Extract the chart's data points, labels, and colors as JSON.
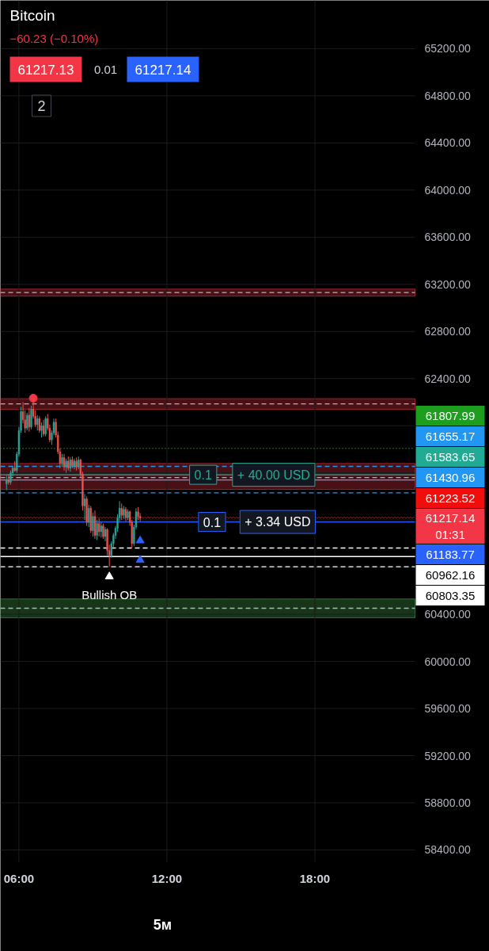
{
  "chart_data": {
    "type": "candlestick",
    "title": "Bitcoin",
    "subtitle": "−60.23 (−0.10%)",
    "annotations": [
      "61217.13",
      "0.01",
      "61217.14",
      "2",
      "5м",
      {
        "text": "0.1",
        "x": 13.47,
        "y": 61583.65
      },
      {
        "text": "+ 40.00 USD",
        "x": 16.33,
        "y": 61583.65
      },
      {
        "text": "0.1",
        "x": 13.83,
        "y": 61183.77
      },
      {
        "text": "+ 3.34 USD",
        "x": 16.49,
        "y": 61183.77
      },
      {
        "text": "Bullish OB",
        "x": 9.6667,
        "y": 60720
      }
    ],
    "x": [
      5.5,
      5.5833,
      5.6667,
      5.75,
      5.8333,
      5.9167,
      6.0,
      6.0833,
      6.1667,
      6.25,
      6.3333,
      6.4167,
      6.5,
      6.5833,
      6.6667,
      6.75,
      6.8333,
      6.9167,
      7.0,
      7.0833,
      7.1667,
      7.25,
      7.3333,
      7.4167,
      7.5,
      7.5833,
      7.6667,
      7.75,
      7.8333,
      7.9167,
      8.0,
      8.0833,
      8.1667,
      8.25,
      8.3333,
      8.4167,
      8.5,
      8.5833,
      8.6667,
      8.75,
      8.8333,
      8.9167,
      9.0,
      9.0833,
      9.1667,
      9.25,
      9.3333,
      9.4167,
      9.5,
      9.5833,
      9.6667,
      9.75,
      9.8333,
      9.9167,
      10.0,
      10.0833,
      10.1667,
      10.25,
      10.3333,
      10.4167,
      10.5,
      10.5833,
      10.6667,
      10.75,
      10.8333,
      10.9167
    ],
    "ohlc": [
      [
        61507,
        61575,
        61453,
        61541
      ],
      [
        61541,
        61590,
        61500,
        61520
      ],
      [
        61520,
        61620,
        61500,
        61600
      ],
      [
        61600,
        61660,
        61570,
        61640
      ],
      [
        61640,
        61700,
        61610,
        61620
      ],
      [
        61620,
        61780,
        61600,
        61760
      ],
      [
        61760,
        61990,
        61740,
        61960
      ],
      [
        61960,
        62160,
        61940,
        62120
      ],
      [
        62120,
        62200,
        62020,
        62050
      ],
      [
        62050,
        62130,
        61940,
        61980
      ],
      [
        61980,
        62110,
        61960,
        62090
      ],
      [
        62090,
        62150,
        61950,
        61990
      ],
      [
        61990,
        62170,
        61970,
        62140
      ],
      [
        62140,
        62234,
        62060,
        62080
      ],
      [
        62080,
        62130,
        61990,
        62010
      ],
      [
        62010,
        62090,
        61960,
        62060
      ],
      [
        62060,
        62080,
        61940,
        61960
      ],
      [
        61960,
        62030,
        61900,
        62000
      ],
      [
        62000,
        62050,
        61910,
        61930
      ],
      [
        61930,
        62080,
        61910,
        62060
      ],
      [
        62060,
        62100,
        61960,
        61980
      ],
      [
        61980,
        62010,
        61860,
        61880
      ],
      [
        61880,
        61960,
        61840,
        61940
      ],
      [
        61940,
        62060,
        61920,
        62030
      ],
      [
        62030,
        62060,
        61900,
        61920
      ],
      [
        61920,
        61950,
        61760,
        61780
      ],
      [
        61780,
        61810,
        61640,
        61680
      ],
      [
        61680,
        61760,
        61650,
        61730
      ],
      [
        61730,
        61760,
        61620,
        61650
      ],
      [
        61650,
        61720,
        61600,
        61700
      ],
      [
        61700,
        61740,
        61620,
        61640
      ],
      [
        61640,
        61730,
        61610,
        61710
      ],
      [
        61710,
        61740,
        61640,
        61660
      ],
      [
        61660,
        61720,
        61630,
        61700
      ],
      [
        61700,
        61730,
        61620,
        61650
      ],
      [
        61650,
        61740,
        61630,
        61710
      ],
      [
        61710,
        61720,
        61560,
        61590
      ],
      [
        61590,
        61610,
        61280,
        61320
      ],
      [
        61320,
        61420,
        61200,
        61380
      ],
      [
        61380,
        61400,
        61150,
        61180
      ],
      [
        61180,
        61330,
        61140,
        61300
      ],
      [
        61300,
        61320,
        61090,
        61110
      ],
      [
        61110,
        61260,
        61060,
        61230
      ],
      [
        61230,
        61280,
        61040,
        61070
      ],
      [
        61070,
        61200,
        61030,
        61170
      ],
      [
        61170,
        61210,
        61060,
        61100
      ],
      [
        61100,
        61180,
        61050,
        61150
      ],
      [
        61150,
        61170,
        61040,
        61060
      ],
      [
        61060,
        61140,
        61020,
        61120
      ],
      [
        61120,
        61130,
        60900,
        60940
      ],
      [
        60940,
        60990,
        60803.35,
        60900
      ],
      [
        60900,
        61020,
        60880,
        61000
      ],
      [
        61000,
        61090,
        60970,
        61070
      ],
      [
        61070,
        61150,
        61040,
        61130
      ],
      [
        61130,
        61250,
        61100,
        61220
      ],
      [
        61220,
        61360,
        61190,
        61300
      ],
      [
        61300,
        61340,
        61200,
        61240
      ],
      [
        61240,
        61320,
        61210,
        61290
      ],
      [
        61290,
        61310,
        61190,
        61220
      ],
      [
        61220,
        61290,
        61200,
        61270
      ],
      [
        61270,
        61280,
        61150,
        61180
      ],
      [
        61180,
        61200,
        60960,
        61000
      ],
      [
        61000,
        61160,
        60980,
        61140
      ],
      [
        61140,
        61300,
        61120,
        61270
      ],
      [
        61270,
        61310,
        61200,
        61230
      ],
      [
        61230,
        61260,
        61190,
        61217.14
      ]
    ],
    "colors": [
      "#26a69a",
      "#ef5350",
      "#26a69a",
      "#26a69a",
      "#ef5350",
      "#26a69a",
      "#26a69a",
      "#26a69a",
      "#ef5350",
      "#ef5350",
      "#26a69a",
      "#ef5350",
      "#26a69a",
      "#ef5350",
      "#ef5350",
      "#26a69a",
      "#ef5350",
      "#26a69a",
      "#ef5350",
      "#26a69a",
      "#ef5350",
      "#ef5350",
      "#26a69a",
      "#26a69a",
      "#ef5350",
      "#ef5350",
      "#ef5350",
      "#26a69a",
      "#ef5350",
      "#26a69a",
      "#ef5350",
      "#26a69a",
      "#ef5350",
      "#26a69a",
      "#ef5350",
      "#26a69a",
      "#ef5350",
      "#ef5350",
      "#26a69a",
      "#ef5350",
      "#26a69a",
      "#ef5350",
      "#26a69a",
      "#ef5350",
      "#26a69a",
      "#ef5350",
      "#26a69a",
      "#ef5350",
      "#26a69a",
      "#ef5350",
      "#ef5350",
      "#26a69a",
      "#26a69a",
      "#26a69a",
      "#26a69a",
      "#26a69a",
      "#ef5350",
      "#26a69a",
      "#ef5350",
      "#26a69a",
      "#ef5350",
      "#ef5350",
      "#26a69a",
      "#26a69a",
      "#ef5350",
      "#ef5350"
    ],
    "series": [
      {
        "type": "scatter",
        "color": "#f23645",
        "marker": "circle",
        "x": [
          6.5833
        ],
        "values": [
          62234
        ]
      },
      {
        "type": "scatter",
        "color": "#ffffff",
        "marker": "triangle",
        "x": [
          9.6667
        ],
        "values": [
          60720
        ]
      },
      {
        "type": "scatter",
        "color": "#2962ff",
        "marker": "triangle",
        "x": [
          10.9167,
          10.9167
        ],
        "values": [
          61025,
          60860
        ]
      }
    ],
    "bands": [
      {
        "axis": "y",
        "from": 63100,
        "to": 63160,
        "color": "#f23645"
      },
      {
        "axis": "y",
        "from": 62140,
        "to": 62230,
        "color": "#f23645"
      },
      {
        "axis": "y",
        "from": 61460,
        "to": 61680,
        "color": "#f23645"
      },
      {
        "axis": "y",
        "from": 60370,
        "to": 60530,
        "color": "#4caf50"
      }
    ],
    "ref_lines": [
      {
        "axis": "y",
        "value": 63130,
        "color": "#b2b5be",
        "line_style": "dashed"
      },
      {
        "axis": "y",
        "value": 62186,
        "color": "#b2b5be",
        "line_style": "dashed"
      },
      {
        "axis": "y",
        "value": 61560,
        "color": "#b2b5be",
        "line_style": "dashed"
      },
      {
        "axis": "y",
        "value": 60451,
        "color": "#b2b5be",
        "line_style": "dashed"
      },
      {
        "axis": "y",
        "value": 61540,
        "color": "#5b9cf6",
        "line_style": "solid"
      },
      {
        "axis": "y",
        "value": 60890,
        "color": "#ffffff",
        "line_style": "solid"
      },
      {
        "axis": "y",
        "value": 61807.99,
        "label": "61807.99",
        "color": "#1e9e1e",
        "line_style": "dotted"
      },
      {
        "axis": "y",
        "value": 61655.17,
        "label": "61655.17",
        "color": "#2196f3",
        "line_style": "dashed"
      },
      {
        "axis": "y",
        "value": 61583.65,
        "label": "61583.65",
        "color": "#22ab94",
        "line_style": "solid"
      },
      {
        "axis": "y",
        "value": 61430.96,
        "label": "61430.96",
        "color": "#2196f3",
        "line_style": "dashed"
      },
      {
        "axis": "y",
        "value": 61223.52,
        "label": "61223.52",
        "color": "#f20d0d",
        "line_style": "dotted"
      },
      {
        "axis": "y",
        "value": 61217.14,
        "label": "61217.14\n01:31",
        "color": "#f23645",
        "line_style": "dotted"
      },
      {
        "axis": "y",
        "value": 61183.77,
        "label": "61183.77",
        "color": "#2962ff",
        "line_style": "solid"
      },
      {
        "axis": "y",
        "value": 60962.16,
        "label": "60962.16",
        "color": "#ffffff",
        "line_style": "dashed"
      },
      {
        "axis": "y",
        "value": 60803.35,
        "label": "60803.35",
        "color": "#ffffff",
        "line_style": "dashed"
      }
    ],
    "xlim": [
      5.25,
      22.06
    ],
    "xticks": [
      {
        "value": 6,
        "label": "06:00"
      },
      {
        "value": 12,
        "label": "12:00"
      },
      {
        "value": 18,
        "label": "18:00"
      }
    ],
    "ylim": [
      58292,
      65610
    ],
    "yticks": [
      {
        "value": 58400,
        "label": "58400.00"
      },
      {
        "value": 58800,
        "label": "58800.00"
      },
      {
        "value": 59200,
        "label": "59200.00"
      },
      {
        "value": 59600,
        "label": "59600.00"
      },
      {
        "value": 60000,
        "label": "60000.00"
      },
      {
        "value": 60400,
        "label": "60400.00"
      },
      {
        "value": 60800,
        "label": null
      },
      {
        "value": 61200,
        "label": null
      },
      {
        "value": 61600,
        "label": null
      },
      {
        "value": 62000,
        "label": null
      },
      {
        "value": 62400,
        "label": "62400.00"
      },
      {
        "value": 62800,
        "label": "62800.00"
      },
      {
        "value": 63200,
        "label": "63200.00"
      },
      {
        "value": 63600,
        "label": "63600.00"
      },
      {
        "value": 64000,
        "label": "64000.00"
      },
      {
        "value": 64400,
        "label": "64400.00"
      },
      {
        "value": 64800,
        "label": "64800.00"
      },
      {
        "value": 65200,
        "label": "65200.00"
      }
    ],
    "grid": true
  }
}
